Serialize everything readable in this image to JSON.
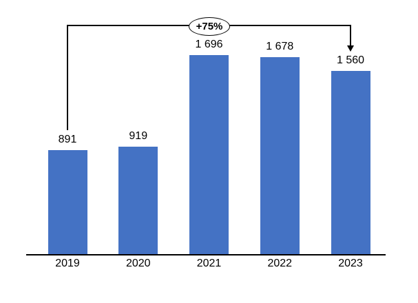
{
  "chart_data": {
    "type": "bar",
    "categories": [
      "2019",
      "2020",
      "2021",
      "2022",
      "2023"
    ],
    "values": [
      891,
      919,
      1696,
      1678,
      1560
    ],
    "value_labels": [
      "891",
      "919",
      "1 696",
      "1 678",
      "1 560"
    ],
    "title": "",
    "xlabel": "",
    "ylabel": "",
    "ylim": [
      0,
      1750
    ],
    "grid": false,
    "legend": false,
    "bar_color": "#4472C4",
    "axis_color": "#000000",
    "text_color": "#000000",
    "annotation": {
      "label": "+75%",
      "from_category": "2019",
      "to_category": "2023"
    }
  }
}
